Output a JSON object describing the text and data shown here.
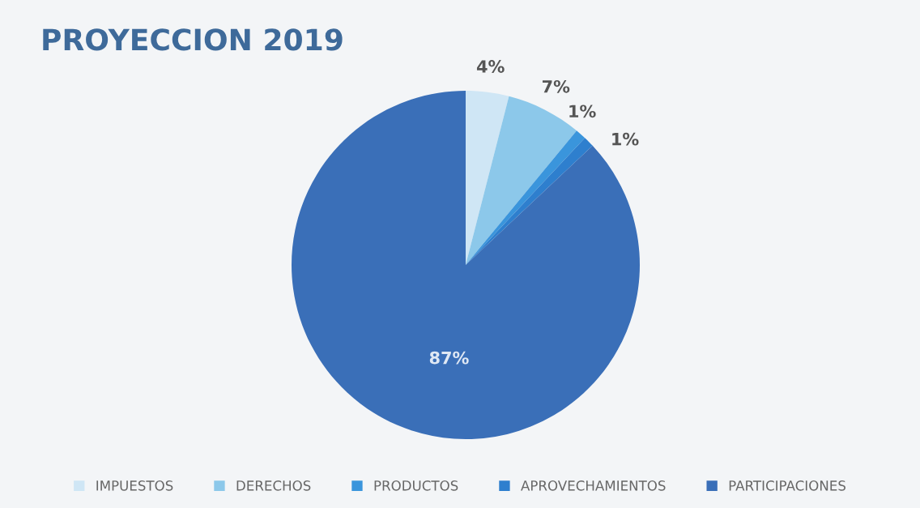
{
  "chart_data": {
    "type": "pie",
    "title": "PROYECCION 2019",
    "categories": [
      "IMPUESTOS",
      "DERECHOS",
      "PRODUCTOS",
      "APROVECHAMIENTOS",
      "PARTICIPACIONES"
    ],
    "values": [
      4,
      7,
      1,
      1,
      87
    ],
    "value_labels": [
      "4%",
      "7%",
      "1%",
      "1%",
      "87%"
    ],
    "colors": [
      "#cfe6f5",
      "#8cc8ea",
      "#3a95dc",
      "#2e7fce",
      "#3a6fb8"
    ],
    "legend": "bottom"
  }
}
